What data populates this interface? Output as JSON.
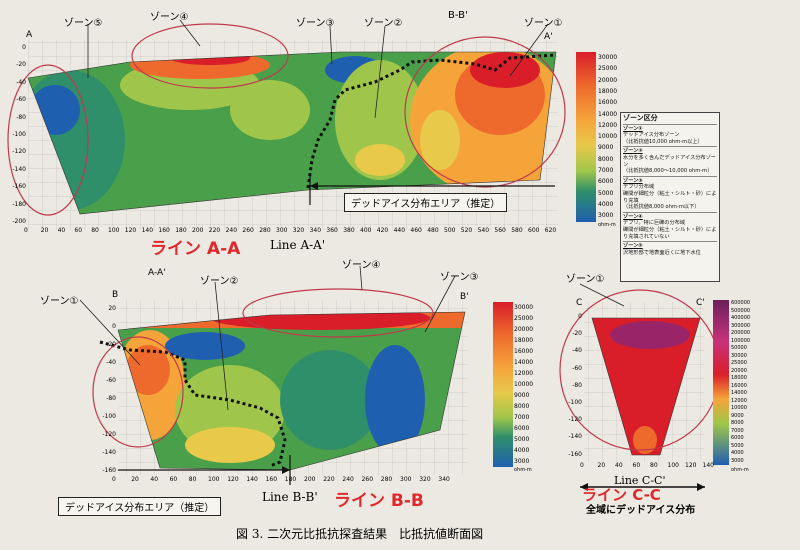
{
  "figure": {
    "caption": "図 3. 二次元比抵抗探査結果　比抵抗値断面図"
  },
  "panel_a": {
    "red_title": "ライン A-A",
    "line_label": "Line A-A'",
    "end_left": "A",
    "end_right": "A'",
    "crossing_label": "B-B'",
    "zones": [
      "ゾーン⑤",
      "ゾーン④",
      "ゾーン③",
      "ゾーン②",
      "ゾーン①"
    ],
    "dead_ice_label": "デッドアイス分布エリア（推定）",
    "y_ticks": [
      "0",
      "-20",
      "-40",
      "-60",
      "-80",
      "-100",
      "-120",
      "-140",
      "-160",
      "-180",
      "-200"
    ],
    "x_ticks": [
      "0",
      "20",
      "40",
      "60",
      "80",
      "100",
      "120",
      "140",
      "160",
      "180",
      "200",
      "220",
      "240",
      "260",
      "280",
      "300",
      "320",
      "340",
      "360",
      "380",
      "400",
      "420",
      "440",
      "460",
      "480",
      "500",
      "520",
      "540",
      "560",
      "580",
      "600",
      "620"
    ],
    "scale_ticks": [
      "30000",
      "25000",
      "20000",
      "18000",
      "16000",
      "14000",
      "12000",
      "10000",
      "9000",
      "8000",
      "7000",
      "6000",
      "5000",
      "4000",
      "3000"
    ],
    "unit": "ohm-m"
  },
  "panel_b": {
    "red_title": "ライン B-B",
    "line_label": "Line B-B'",
    "end_left": "B",
    "end_right": "B'",
    "crossing_label": "A-A'",
    "zones": [
      "ゾーン①",
      "ゾーン②",
      "ゾーン④",
      "ゾーン③"
    ],
    "dead_ice_label": "デッドアイス分布エリア（推定）",
    "y_ticks": [
      "20",
      "0",
      "-20",
      "-40",
      "-60",
      "-80",
      "-100",
      "-120",
      "-140",
      "-160"
    ],
    "x_ticks": [
      "0",
      "20",
      "40",
      "60",
      "80",
      "100",
      "120",
      "140",
      "160",
      "180",
      "200",
      "220",
      "240",
      "260",
      "280",
      "300",
      "320",
      "340"
    ],
    "scale_ticks": [
      "30000",
      "25000",
      "20000",
      "18000",
      "16000",
      "14000",
      "12000",
      "10000",
      "9000",
      "8000",
      "7000",
      "6000",
      "5000",
      "4000",
      "3000"
    ],
    "unit": "ohm-m"
  },
  "panel_c": {
    "red_title": "ライン C-C",
    "line_label": "Line C-C'",
    "end_left": "C",
    "end_right": "C'",
    "zones": [
      "ゾーン①"
    ],
    "whole_area_label": "全域にデッドアイス分布",
    "y_ticks": [
      "0",
      "-20",
      "-40",
      "-60",
      "-80",
      "-100",
      "-120",
      "-140",
      "-160"
    ],
    "x_ticks": [
      "0",
      "20",
      "40",
      "60",
      "80",
      "100",
      "120",
      "140"
    ],
    "scale_ticks": [
      "600000",
      "500000",
      "400000",
      "300000",
      "200000",
      "100000",
      "50000",
      "30000",
      "25000",
      "20000",
      "18000",
      "16000",
      "14000",
      "12000",
      "10000",
      "9000",
      "8000",
      "7000",
      "6000",
      "5000",
      "4000",
      "3000"
    ],
    "unit": "ohm-m"
  },
  "zone_legend": {
    "title": "ゾーン区分",
    "items": [
      {
        "head": "ゾーン①",
        "lines": [
          "デッドアイス分布ゾーン",
          "（比抵抗値10,000 ohm-m以上）"
        ]
      },
      {
        "head": "ゾーン②",
        "lines": [
          "水分を多く含んだデッドアイス分布ゾーン",
          "（比抵抗値8,000〜10,000 ohm-m）"
        ]
      },
      {
        "head": "ゾーン③",
        "lines": [
          "デブリ分布域",
          "礫間が細粒分（粘土・シルト・砂）により充填",
          "（比抵抗値8,000 ohm-m以下）"
        ]
      },
      {
        "head": "ゾーン④",
        "lines": [
          "デブリ。特に巨礫の分布域",
          "礫間が細粒分（粘土・シルト・砂）により充填されていない"
        ]
      },
      {
        "head": "ゾーン⑤",
        "lines": [
          "沢地形部で地表面近くに地下水位"
        ]
      }
    ]
  },
  "colors": {
    "very_high": "#d91e2a",
    "high": "#ee6a2c",
    "mid_high": "#f5a43a",
    "mid": "#e8c94a",
    "mid_low": "#9fc64a",
    "low": "#4aa04a",
    "lower": "#2f8f6a",
    "lowest": "#1f5fb0",
    "circle": "#c0394a",
    "title_red": "#e0282a"
  }
}
